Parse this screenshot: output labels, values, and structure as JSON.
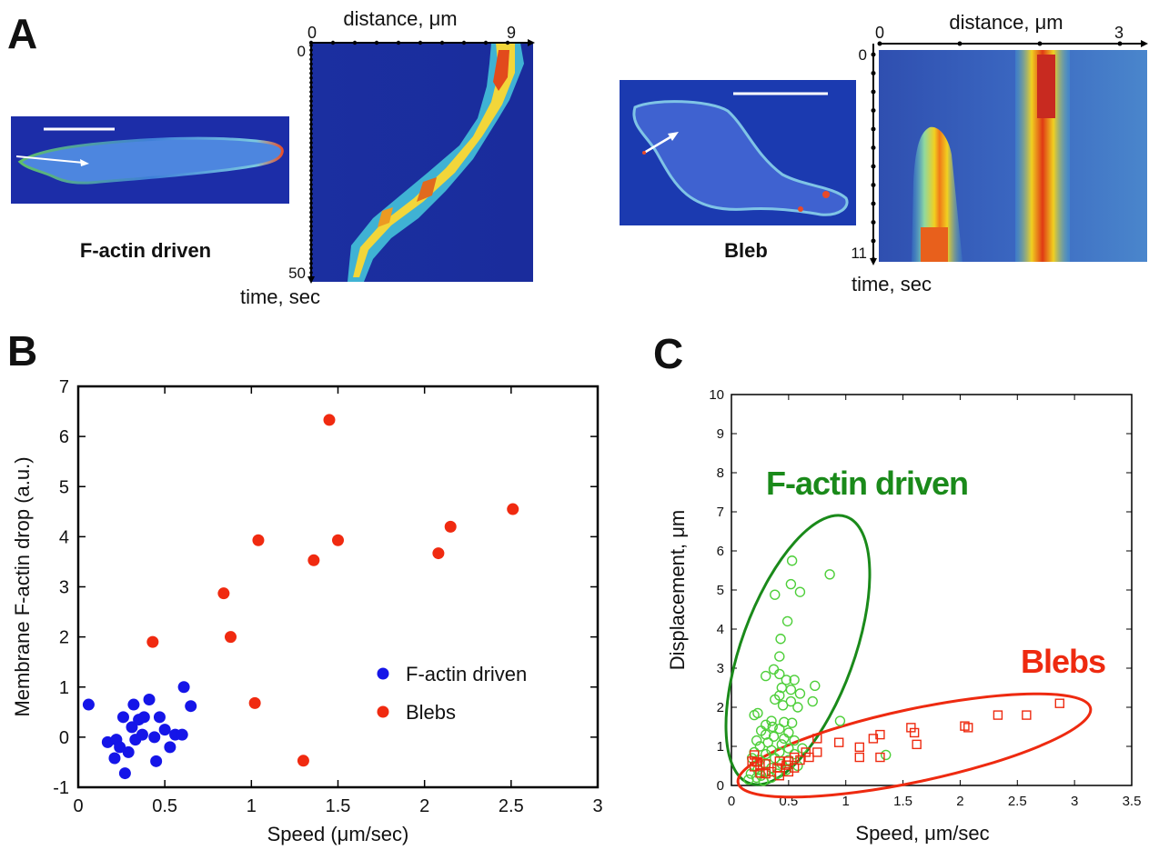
{
  "panel_a": {
    "letter": "A",
    "left": {
      "cell_label": "F-actin driven",
      "distance_label": "distance, μm",
      "time_label": "time, sec",
      "x_ticks": [
        "0",
        "9"
      ],
      "y_ticks": [
        "0",
        "50"
      ]
    },
    "right": {
      "cell_label": "Bleb",
      "distance_label": "distance, μm",
      "time_label": "time, sec",
      "x_ticks": [
        "0",
        "3"
      ],
      "y_ticks": [
        "0",
        "11"
      ]
    }
  },
  "chart_data": [
    {
      "panel": "B",
      "type": "scatter",
      "xlabel": "Speed (μm/sec)",
      "ylabel": "Membrane F-actin drop (a.u.)",
      "xlim": [
        0,
        3
      ],
      "ylim": [
        -1,
        7
      ],
      "x_ticks": [
        0,
        0.5,
        1,
        1.5,
        2,
        2.5,
        3
      ],
      "x_tick_labels": [
        "0",
        "0.5",
        "1",
        "1.5",
        "2",
        "2.5",
        "3"
      ],
      "y_ticks": [
        -1,
        0,
        1,
        2,
        3,
        4,
        5,
        6,
        7
      ],
      "y_tick_labels": [
        "-1",
        "0",
        "1",
        "2",
        "3",
        "4",
        "5",
        "6",
        "7"
      ],
      "legend_position": "center-right",
      "series": [
        {
          "name": "F-actin driven",
          "color": "#1515e8",
          "points": [
            [
              0.06,
              0.65
            ],
            [
              0.17,
              -0.1
            ],
            [
              0.21,
              -0.42
            ],
            [
              0.22,
              -0.05
            ],
            [
              0.24,
              -0.2
            ],
            [
              0.26,
              0.4
            ],
            [
              0.27,
              -0.72
            ],
            [
              0.29,
              -0.3
            ],
            [
              0.31,
              0.2
            ],
            [
              0.32,
              0.65
            ],
            [
              0.33,
              -0.05
            ],
            [
              0.35,
              0.35
            ],
            [
              0.37,
              0.05
            ],
            [
              0.38,
              0.4
            ],
            [
              0.41,
              0.75
            ],
            [
              0.44,
              0.0
            ],
            [
              0.45,
              -0.48
            ],
            [
              0.47,
              0.4
            ],
            [
              0.5,
              0.15
            ],
            [
              0.53,
              -0.2
            ],
            [
              0.56,
              0.05
            ],
            [
              0.6,
              0.05
            ],
            [
              0.61,
              1.0
            ],
            [
              0.65,
              0.62
            ]
          ]
        },
        {
          "name": "Blebs",
          "color": "#f02a10",
          "points": [
            [
              0.43,
              1.9
            ],
            [
              0.84,
              2.87
            ],
            [
              0.88,
              2.0
            ],
            [
              1.02,
              0.68
            ],
            [
              1.04,
              3.93
            ],
            [
              1.3,
              -0.47
            ],
            [
              1.36,
              3.53
            ],
            [
              1.45,
              6.33
            ],
            [
              1.5,
              3.93
            ],
            [
              2.08,
              3.67
            ],
            [
              2.15,
              4.2
            ],
            [
              2.51,
              4.55
            ]
          ]
        }
      ]
    },
    {
      "panel": "C",
      "type": "scatter",
      "xlabel": "Speed, μm/sec",
      "ylabel": "Displacement, μm",
      "xlim": [
        0,
        3.5
      ],
      "ylim": [
        0,
        10
      ],
      "x_ticks": [
        0,
        0.5,
        1,
        1.5,
        2,
        2.5,
        3,
        3.5
      ],
      "x_tick_labels": [
        "0",
        "0.5",
        "1",
        "1.5",
        "2",
        "2.5",
        "3",
        "3.5"
      ],
      "y_ticks": [
        0,
        1,
        2,
        3,
        4,
        5,
        6,
        7,
        8,
        9,
        10
      ],
      "y_tick_labels": [
        "0",
        "1",
        "2",
        "3",
        "4",
        "5",
        "6",
        "7",
        "8",
        "9",
        "10"
      ],
      "annotations": [
        {
          "text": "F-actin driven",
          "color": "#1a8a1a"
        },
        {
          "text": "Blebs",
          "color": "#ee2a10"
        }
      ],
      "ellipses": [
        {
          "group": "F-actin driven",
          "color": "#1a8a1a",
          "center": [
            0.52,
            3.45
          ],
          "semi_major_speed": 0.31,
          "semi_minor_speed": 0.29,
          "semi_major_disp": 3.35,
          "angle_deg": 20
        },
        {
          "group": "Blebs",
          "color": "#ee2a10",
          "center": [
            1.6,
            1.15
          ],
          "semi_major_speed": 1.48,
          "semi_minor_disp": 0.62,
          "angle_deg": 16
        }
      ],
      "series": [
        {
          "name": "F-actin driven",
          "marker": "circle-open",
          "color": "#4ecf3a",
          "points": [
            [
              0.53,
              5.75
            ],
            [
              0.86,
              5.4
            ],
            [
              0.52,
              5.15
            ],
            [
              0.6,
              4.95
            ],
            [
              0.38,
              4.88
            ],
            [
              0.49,
              4.2
            ],
            [
              0.43,
              3.75
            ],
            [
              0.42,
              3.3
            ],
            [
              0.37,
              2.97
            ],
            [
              0.42,
              2.85
            ],
            [
              0.3,
              2.8
            ],
            [
              0.48,
              2.7
            ],
            [
              0.55,
              2.7
            ],
            [
              0.73,
              2.55
            ],
            [
              0.44,
              2.5
            ],
            [
              0.52,
              2.45
            ],
            [
              0.6,
              2.35
            ],
            [
              0.42,
              2.3
            ],
            [
              0.38,
              2.2
            ],
            [
              0.52,
              2.15
            ],
            [
              0.71,
              2.15
            ],
            [
              0.45,
              2.05
            ],
            [
              0.58,
              2.0
            ],
            [
              0.23,
              1.85
            ],
            [
              0.2,
              1.8
            ],
            [
              0.35,
              1.65
            ],
            [
              0.46,
              1.62
            ],
            [
              0.53,
              1.6
            ],
            [
              0.95,
              1.65
            ],
            [
              0.3,
              1.55
            ],
            [
              0.36,
              1.5
            ],
            [
              0.42,
              1.45
            ],
            [
              0.26,
              1.4
            ],
            [
              0.5,
              1.35
            ],
            [
              0.3,
              1.3
            ],
            [
              0.37,
              1.25
            ],
            [
              0.46,
              1.2
            ],
            [
              0.55,
              1.15
            ],
            [
              0.22,
              1.15
            ],
            [
              0.32,
              1.1
            ],
            [
              0.44,
              1.05
            ],
            [
              0.25,
              1.0
            ],
            [
              0.5,
              0.95
            ],
            [
              0.62,
              0.95
            ],
            [
              0.35,
              0.9
            ],
            [
              0.2,
              0.85
            ],
            [
              0.42,
              0.85
            ],
            [
              0.3,
              0.8
            ],
            [
              0.55,
              0.8
            ],
            [
              1.35,
              0.78
            ],
            [
              0.18,
              0.7
            ],
            [
              0.38,
              0.7
            ],
            [
              0.25,
              0.65
            ],
            [
              0.5,
              0.65
            ],
            [
              0.3,
              0.55
            ],
            [
              0.44,
              0.55
            ],
            [
              0.2,
              0.5
            ],
            [
              0.58,
              0.5
            ],
            [
              0.35,
              0.45
            ],
            [
              0.23,
              0.4
            ],
            [
              0.48,
              0.4
            ],
            [
              0.3,
              0.35
            ],
            [
              0.17,
              0.3
            ],
            [
              0.4,
              0.3
            ],
            [
              0.26,
              0.25
            ],
            [
              0.22,
              0.2
            ],
            [
              0.35,
              0.2
            ],
            [
              0.15,
              0.15
            ],
            [
              0.28,
              0.12
            ]
          ]
        },
        {
          "name": "Blebs",
          "marker": "square-open",
          "color": "#ee2a10",
          "points": [
            [
              2.87,
              2.1
            ],
            [
              2.33,
              1.8
            ],
            [
              2.58,
              1.8
            ],
            [
              2.04,
              1.52
            ],
            [
              2.07,
              1.48
            ],
            [
              1.57,
              1.48
            ],
            [
              1.6,
              1.35
            ],
            [
              1.62,
              1.05
            ],
            [
              1.3,
              1.3
            ],
            [
              1.24,
              1.2
            ],
            [
              1.12,
              0.98
            ],
            [
              1.12,
              0.72
            ],
            [
              1.3,
              0.72
            ],
            [
              0.94,
              1.1
            ],
            [
              0.75,
              1.2
            ],
            [
              0.75,
              0.85
            ],
            [
              0.65,
              0.85
            ],
            [
              0.68,
              0.72
            ],
            [
              0.6,
              0.65
            ],
            [
              0.55,
              0.72
            ],
            [
              0.5,
              0.62
            ],
            [
              0.55,
              0.45
            ],
            [
              0.48,
              0.52
            ],
            [
              0.5,
              0.35
            ],
            [
              0.42,
              0.62
            ],
            [
              0.4,
              0.45
            ],
            [
              0.35,
              0.35
            ],
            [
              0.3,
              0.55
            ],
            [
              0.25,
              0.5
            ],
            [
              0.2,
              0.78
            ],
            [
              0.22,
              0.6
            ],
            [
              0.25,
              0.32
            ],
            [
              0.3,
              0.3
            ],
            [
              0.2,
              0.48
            ],
            [
              0.42,
              0.25
            ],
            [
              0.18,
              0.62
            ]
          ]
        }
      ]
    }
  ]
}
